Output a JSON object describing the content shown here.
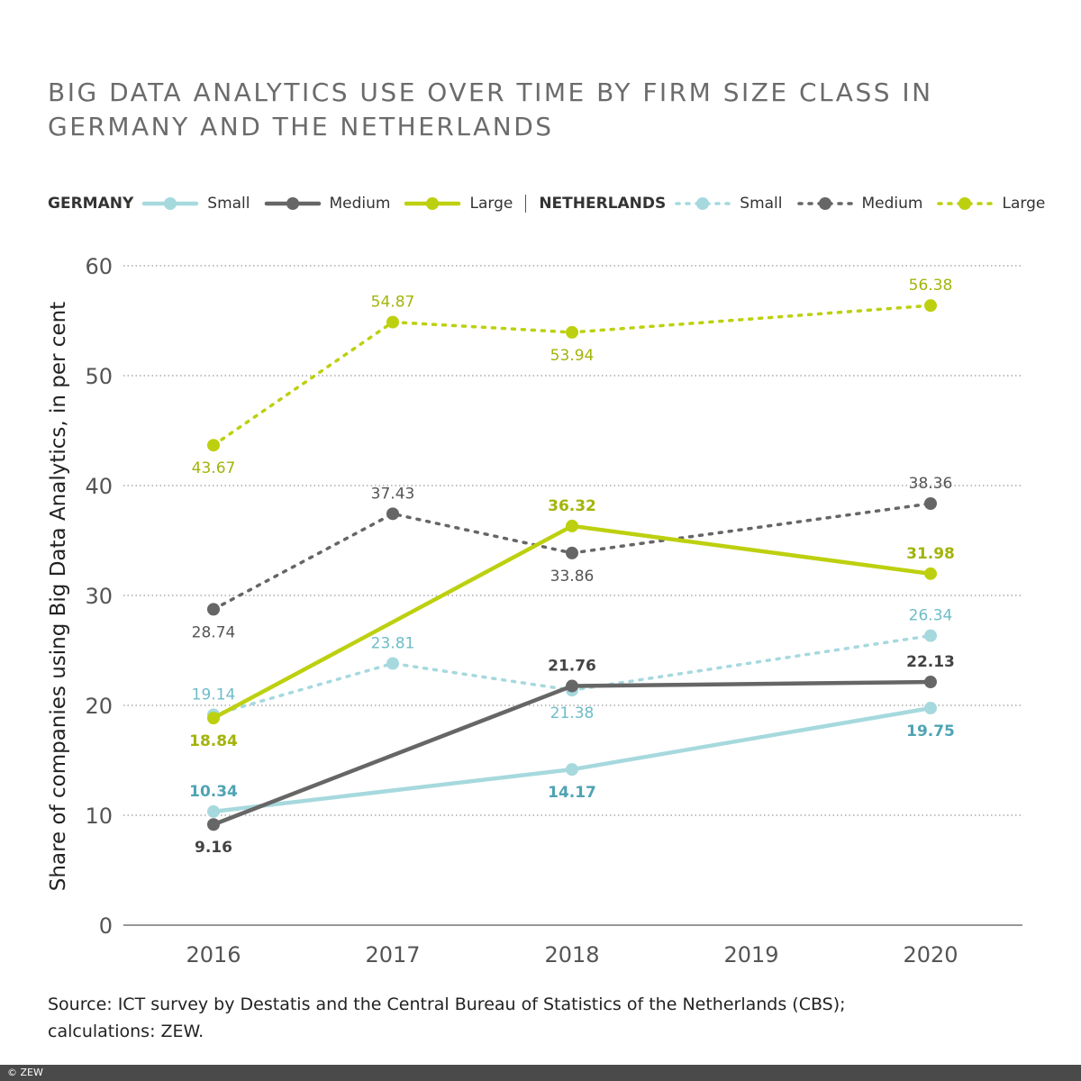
{
  "chart_data": {
    "type": "line",
    "title": "BIG DATA ANALYTICS USE OVER TIME BY FIRM SIZE CLASS IN GERMANY AND THE NETHERLANDS",
    "title_lines": [
      "BIG DATA ANALYTICS USE OVER TIME BY FIRM SIZE CLASS IN",
      "GERMANY AND THE NETHERLANDS"
    ],
    "xlabel": "",
    "ylabel": "Share of companies using Big Data Analytics, in per cent",
    "x": [
      "2016",
      "2017",
      "2018",
      "2019",
      "2020"
    ],
    "ylim": [
      0,
      60
    ],
    "yticks": [
      "0",
      "10",
      "20",
      "30",
      "40",
      "50",
      "60"
    ],
    "grid": true,
    "legend_placement": "top",
    "legend_groups": [
      {
        "label": "GERMANY",
        "items": [
          "Small",
          "Medium",
          "Large"
        ]
      },
      {
        "label": "NETHERLANDS",
        "items": [
          "Small",
          "Medium",
          "Large"
        ]
      }
    ],
    "series": [
      {
        "name": "Small",
        "group": "GERMANY",
        "style": "solid",
        "color": "#a6d9de",
        "label_color": "#4fa3b4",
        "x": [
          "2016",
          "2018",
          "2020"
        ],
        "values": [
          10.34,
          14.17,
          19.75
        ],
        "labels": [
          "10.34",
          "14.17",
          "19.75"
        ]
      },
      {
        "name": "Medium",
        "group": "GERMANY",
        "style": "solid",
        "color": "#666666",
        "label_color": "#444444",
        "x": [
          "2016",
          "2018",
          "2020"
        ],
        "values": [
          9.16,
          21.76,
          22.13
        ],
        "labels": [
          "9.16",
          "21.76",
          "22.13"
        ]
      },
      {
        "name": "Large",
        "group": "GERMANY",
        "style": "solid",
        "color": "#bdd00f",
        "label_color": "#a3b40a",
        "x": [
          "2016",
          "2018",
          "2020"
        ],
        "values": [
          18.84,
          36.32,
          31.98
        ],
        "labels": [
          "18.84",
          "36.32",
          "31.98"
        ]
      },
      {
        "name": "Small",
        "group": "NETHERLANDS",
        "style": "dotted",
        "color": "#a6d9de",
        "label_color": "#6dbcc7",
        "x": [
          "2016",
          "2017",
          "2018",
          "2020"
        ],
        "values": [
          19.14,
          23.81,
          21.38,
          26.34
        ],
        "labels": [
          "19.14",
          "23.81",
          "21.38",
          "26.34"
        ]
      },
      {
        "name": "Medium",
        "group": "NETHERLANDS",
        "style": "dotted",
        "color": "#666666",
        "label_color": "#555555",
        "x": [
          "2016",
          "2017",
          "2018",
          "2020"
        ],
        "values": [
          28.74,
          37.43,
          33.86,
          38.36
        ],
        "labels": [
          "28.74",
          "37.43",
          "33.86",
          "38.36"
        ]
      },
      {
        "name": "Large",
        "group": "NETHERLANDS",
        "style": "dotted",
        "color": "#bdd00f",
        "label_color": "#a3b40a",
        "x": [
          "2016",
          "2017",
          "2018",
          "2020"
        ],
        "values": [
          43.67,
          54.87,
          53.94,
          56.38
        ],
        "labels": [
          "43.67",
          "54.87",
          "53.94",
          "56.38"
        ]
      }
    ]
  },
  "source_lines": [
    "Source: ICT survey by Destatis and the Central Bureau of Statistics of the Netherlands (CBS);",
    "calculations: ZEW."
  ],
  "footer": "© ZEW"
}
